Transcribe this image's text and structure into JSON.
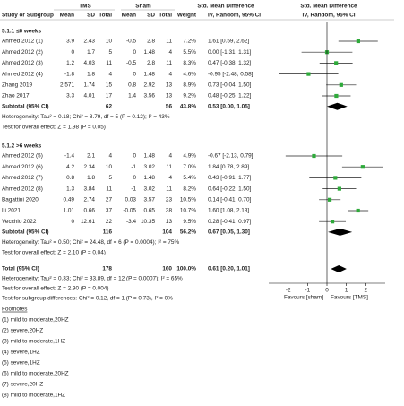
{
  "header": {
    "group_tms": "TMS",
    "group_sham": "Sham",
    "smd_text": "Std. Mean Difference",
    "smd_plot": "Std. Mean Difference",
    "columns": [
      "Study or Subgroup",
      "Mean",
      "SD",
      "Total",
      "Mean",
      "SD",
      "Total",
      "Weight",
      "IV, Random, 95% CI",
      "IV, Random, 95% CI"
    ]
  },
  "subgroups": [
    {
      "title": "5.1.1 ≤6 weeks",
      "studies": [
        {
          "name": "Ahmed 2012 (1)",
          "tms_mean": 3.9,
          "tms_sd": 2.43,
          "tms_total": 10,
          "sham_mean": -0.5,
          "sham_sd": 2.8,
          "sham_total": 11,
          "weight": "7.2%",
          "ci": "1.61 [0.59, 2.62]",
          "smd": 1.61,
          "lo": 0.59,
          "hi": 2.62
        },
        {
          "name": "Ahmed 2012 (2)",
          "tms_mean": 0,
          "tms_sd": 1.7,
          "tms_total": 5,
          "sham_mean": 0,
          "sham_sd": 1.48,
          "sham_total": 4,
          "weight": "5.5%",
          "ci": "0.00 [-1.31, 1.31]",
          "smd": 0,
          "lo": -1.31,
          "hi": 1.31
        },
        {
          "name": "Ahmed 2012 (3)",
          "tms_mean": 1.2,
          "tms_sd": 4.03,
          "tms_total": 11,
          "sham_mean": -0.5,
          "sham_sd": 2.8,
          "sham_total": 11,
          "weight": "8.3%",
          "ci": "0.47 [-0.38, 1.32]",
          "smd": 0.47,
          "lo": -0.38,
          "hi": 1.32
        },
        {
          "name": "Ahmed 2012 (4)",
          "tms_mean": -1.8,
          "tms_sd": 1.8,
          "tms_total": 4,
          "sham_mean": 0,
          "sham_sd": 1.48,
          "sham_total": 4,
          "weight": "4.6%",
          "ci": "-0.95 [-2.48, 0.58]",
          "smd": -0.95,
          "lo": -2.48,
          "hi": 0.58
        },
        {
          "name": "Zhang 2019",
          "tms_mean": 2.571,
          "tms_sd": 1.74,
          "tms_total": 15,
          "sham_mean": 0.8,
          "sham_sd": 2.92,
          "sham_total": 13,
          "weight": "8.9%",
          "ci": "0.73 [-0.04, 1.50]",
          "smd": 0.73,
          "lo": -0.04,
          "hi": 1.5
        },
        {
          "name": "Zhao 2017",
          "tms_mean": 3.3,
          "tms_sd": 4.01,
          "tms_total": 17,
          "sham_mean": 1.4,
          "sham_sd": 3.56,
          "sham_total": 13,
          "weight": "9.2%",
          "ci": "0.48 [-0.25, 1.22]",
          "smd": 0.48,
          "lo": -0.25,
          "hi": 1.22
        }
      ],
      "subtotal": {
        "label": "Subtotal (95% CI)",
        "tms_total": 62,
        "sham_total": 56,
        "weight": "43.8%",
        "ci": "0.53 [0.00, 1.05]",
        "smd": 0.53,
        "lo": 0,
        "hi": 1.05
      },
      "heterogeneity": "Heterogeneity: Tau² = 0.18; Chi² = 8.79, df = 5 (P = 0.12); I² = 43%",
      "overall": "Test for overall effect: Z = 1.98 (P = 0.05)"
    },
    {
      "title": "5.1.2 >6 weeks",
      "studies": [
        {
          "name": "Ahmed 2012 (5)",
          "tms_mean": -1.4,
          "tms_sd": 2.1,
          "tms_total": 4,
          "sham_mean": 0,
          "sham_sd": 1.48,
          "sham_total": 4,
          "weight": "4.9%",
          "ci": "-0.67 [-2.13, 0.79]",
          "smd": -0.67,
          "lo": -2.13,
          "hi": 0.79
        },
        {
          "name": "Ahmed 2012 (6)",
          "tms_mean": 4.2,
          "tms_sd": 2.34,
          "tms_total": 10,
          "sham_mean": -1,
          "sham_sd": 3.02,
          "sham_total": 11,
          "weight": "7.0%",
          "ci": "1.84 [0.78, 2.89]",
          "smd": 1.84,
          "lo": 0.78,
          "hi": 2.89
        },
        {
          "name": "Ahmed 2012 (7)",
          "tms_mean": 0.8,
          "tms_sd": 1.8,
          "tms_total": 5,
          "sham_mean": 0,
          "sham_sd": 1.48,
          "sham_total": 4,
          "weight": "5.4%",
          "ci": "0.43 [-0.91, 1.77]",
          "smd": 0.43,
          "lo": -0.91,
          "hi": 1.77
        },
        {
          "name": "Ahmed 2012 (8)",
          "tms_mean": 1.3,
          "tms_sd": 3.84,
          "tms_total": 11,
          "sham_mean": -1,
          "sham_sd": 3.02,
          "sham_total": 11,
          "weight": "8.2%",
          "ci": "0.64 [-0.22, 1.50]",
          "smd": 0.64,
          "lo": -0.22,
          "hi": 1.5
        },
        {
          "name": "Bagattini 2020",
          "tms_mean": 0.49,
          "tms_sd": 2.74,
          "tms_total": 27,
          "sham_mean": 0.03,
          "sham_sd": 3.57,
          "sham_total": 23,
          "weight": "10.5%",
          "ci": "0.14 [-0.41, 0.70]",
          "smd": 0.14,
          "lo": -0.41,
          "hi": 0.7
        },
        {
          "name": "Li 2021",
          "tms_mean": 1.01,
          "tms_sd": 0.66,
          "tms_total": 37,
          "sham_mean": -0.05,
          "sham_sd": 0.65,
          "sham_total": 38,
          "weight": "10.7%",
          "ci": "1.60 [1.08, 2.13]",
          "smd": 1.6,
          "lo": 1.08,
          "hi": 2.13
        },
        {
          "name": "Vecchio 2022",
          "tms_mean": 0,
          "tms_sd": 12.61,
          "tms_total": 22,
          "sham_mean": -3.4,
          "sham_sd": 10.35,
          "sham_total": 13,
          "weight": "9.5%",
          "ci": "0.28 [-0.41, 0.97]",
          "smd": 0.28,
          "lo": -0.41,
          "hi": 0.97
        }
      ],
      "subtotal": {
        "label": "Subtotal (95% CI)",
        "tms_total": 116,
        "sham_total": 104,
        "weight": "56.2%",
        "ci": "0.67 [0.05, 1.30]",
        "smd": 0.67,
        "lo": 0.05,
        "hi": 1.3
      },
      "heterogeneity": "Heterogeneity: Tau² = 0.50; Chi² = 24.48, df = 6 (P = 0.0004); I² = 75%",
      "overall": "Test for overall effect: Z = 2.10 (P = 0.04)"
    }
  ],
  "total": {
    "label": "Total (95% CI)",
    "tms_total": 178,
    "sham_total": 160,
    "weight": "100.0%",
    "ci": "0.61 [0.20, 1.01]",
    "smd": 0.61,
    "lo": 0.2,
    "hi": 1.01,
    "heterogeneity": "Heterogeneity: Tau² = 0.33; Chi² = 33.89, df = 12 (P = 0.0007); I² = 65%",
    "overall": "Test for overall effect: Z = 2.90 (P = 0.004)",
    "subgroup_test": "Test for subgroup differences: Chi² = 0.12, df = 1 (P = 0.73), I² = 0%"
  },
  "axis": {
    "xlim": [
      -3,
      3
    ],
    "xticks": [
      -2,
      -1,
      0,
      1,
      2
    ],
    "left_label": "Favours [sham]",
    "right_label": "Favours [TMS]"
  },
  "footnotes_title": "Footnotes",
  "footnotes": [
    "(1) mild to moderate,20HZ",
    "(2) severe,20HZ",
    "(3) mild to moderate,1HZ",
    "(4) severe,1HZ",
    "(5) severe,1HZ",
    "(6) mild to moderate,20HZ",
    "(7) severe,20HZ",
    "(8) mild to moderate,1HZ"
  ]
}
